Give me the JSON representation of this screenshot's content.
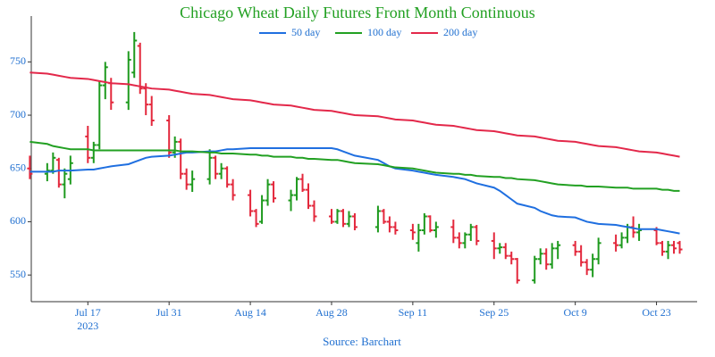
{
  "chart_data": {
    "type": "ohlc",
    "title": "Chicago Wheat Daily Futures Front Month Continuous",
    "annotation": "Source: Barchart",
    "x": [
      "2023-07-07",
      "2023-07-10",
      "2023-07-11",
      "2023-07-12",
      "2023-07-13",
      "2023-07-14",
      "2023-07-17",
      "2023-07-18",
      "2023-07-19",
      "2023-07-20",
      "2023-07-21",
      "2023-07-24",
      "2023-07-25",
      "2023-07-26",
      "2023-07-27",
      "2023-07-28",
      "2023-07-31",
      "2023-08-01",
      "2023-08-02",
      "2023-08-03",
      "2023-08-04",
      "2023-08-07",
      "2023-08-08",
      "2023-08-09",
      "2023-08-10",
      "2023-08-11",
      "2023-08-14",
      "2023-08-15",
      "2023-08-16",
      "2023-08-17",
      "2023-08-18",
      "2023-08-21",
      "2023-08-22",
      "2023-08-23",
      "2023-08-24",
      "2023-08-25",
      "2023-08-28",
      "2023-08-29",
      "2023-08-30",
      "2023-08-31",
      "2023-09-01",
      "2023-09-05",
      "2023-09-06",
      "2023-09-07",
      "2023-09-08",
      "2023-09-11",
      "2023-09-12",
      "2023-09-13",
      "2023-09-14",
      "2023-09-15",
      "2023-09-18",
      "2023-09-19",
      "2023-09-20",
      "2023-09-21",
      "2023-09-22",
      "2023-09-25",
      "2023-09-26",
      "2023-09-27",
      "2023-09-28",
      "2023-09-29",
      "2023-10-02",
      "2023-10-03",
      "2023-10-04",
      "2023-10-05",
      "2023-10-06",
      "2023-10-09",
      "2023-10-10",
      "2023-10-11",
      "2023-10-12",
      "2023-10-13",
      "2023-10-16",
      "2023-10-17",
      "2023-10-18",
      "2023-10-19",
      "2023-10-20",
      "2023-10-23",
      "2023-10-24",
      "2023-10-25",
      "2023-10-26",
      "2023-10-27"
    ],
    "open": [
      650,
      645,
      648,
      658,
      635,
      640,
      680,
      660,
      672,
      728,
      730,
      712,
      740,
      765,
      725,
      710,
      695,
      665,
      675,
      645,
      635,
      640,
      660,
      645,
      650,
      635,
      625,
      610,
      600,
      620,
      635,
      620,
      625,
      640,
      630,
      615,
      605,
      600,
      610,
      598,
      605,
      595,
      610,
      600,
      595,
      592,
      580,
      592,
      605,
      592,
      595,
      585,
      580,
      588,
      595,
      582,
      575,
      576,
      568,
      565,
      545,
      565,
      570,
      560,
      575,
      578,
      572,
      562,
      555,
      565,
      580,
      578,
      585,
      595,
      590,
      592,
      580,
      572,
      578,
      580
    ],
    "high": [
      662,
      655,
      665,
      660,
      650,
      662,
      690,
      675,
      732,
      750,
      735,
      760,
      778,
      768,
      730,
      718,
      700,
      680,
      678,
      650,
      648,
      668,
      662,
      655,
      652,
      640,
      630,
      612,
      625,
      640,
      638,
      630,
      642,
      645,
      636,
      620,
      612,
      612,
      612,
      610,
      608,
      615,
      612,
      605,
      600,
      598,
      598,
      608,
      606,
      600,
      602,
      590,
      590,
      598,
      597,
      590,
      580,
      580,
      572,
      566,
      568,
      575,
      575,
      580,
      582,
      582,
      578,
      565,
      570,
      585,
      588,
      590,
      598,
      605,
      598,
      595,
      582,
      582,
      582,
      582
    ],
    "low": [
      640,
      638,
      645,
      632,
      622,
      635,
      655,
      655,
      668,
      715,
      705,
      705,
      735,
      720,
      700,
      690,
      660,
      660,
      640,
      630,
      628,
      635,
      640,
      640,
      632,
      620,
      605,
      595,
      598,
      615,
      618,
      610,
      620,
      628,
      612,
      600,
      598,
      598,
      595,
      595,
      592,
      590,
      598,
      590,
      588,
      583,
      572,
      588,
      590,
      585,
      580,
      575,
      575,
      582,
      578,
      565,
      570,
      565,
      560,
      542,
      542,
      560,
      555,
      556,
      565,
      568,
      558,
      550,
      548,
      560,
      572,
      575,
      580,
      585,
      582,
      578,
      568,
      565,
      570,
      570
    ],
    "close": [
      645,
      648,
      660,
      635,
      645,
      655,
      660,
      672,
      728,
      745,
      712,
      752,
      770,
      725,
      710,
      695,
      665,
      675,
      645,
      635,
      640,
      660,
      645,
      650,
      635,
      625,
      610,
      598,
      620,
      635,
      622,
      625,
      640,
      630,
      615,
      605,
      600,
      610,
      598,
      605,
      595,
      610,
      600,
      595,
      592,
      590,
      592,
      605,
      592,
      595,
      585,
      580,
      588,
      595,
      582,
      575,
      576,
      568,
      565,
      545,
      565,
      570,
      560,
      575,
      578,
      572,
      562,
      555,
      565,
      580,
      578,
      585,
      595,
      590,
      592,
      580,
      572,
      578,
      575,
      574
    ],
    "increasing_color": "#1e9a1e",
    "decreasing_color": "#e3283c",
    "series": [
      {
        "name": "50 day",
        "color": "#1f6fe0",
        "values": [
          647,
          647,
          647,
          648,
          648,
          648,
          649,
          649,
          650,
          651,
          652,
          654,
          656,
          658,
          660,
          661,
          662,
          663,
          664,
          665,
          665,
          666,
          666,
          667,
          668,
          668,
          669,
          669,
          669,
          669,
          669,
          669,
          669,
          669,
          669,
          669,
          669,
          668,
          666,
          664,
          662,
          658,
          655,
          652,
          650,
          648,
          647,
          646,
          645,
          644,
          642,
          641,
          640,
          638,
          636,
          632,
          629,
          625,
          621,
          617,
          613,
          610,
          608,
          606,
          605,
          604,
          602,
          600,
          599,
          598,
          597,
          596,
          595,
          594,
          593,
          593,
          592,
          591,
          590,
          589
        ]
      },
      {
        "name": "100 day",
        "color": "#22a022",
        "values": [
          675,
          673,
          671,
          670,
          669,
          668,
          668,
          667,
          667,
          667,
          667,
          667,
          667,
          667,
          667,
          667,
          667,
          667,
          666,
          666,
          666,
          665,
          665,
          664,
          664,
          664,
          663,
          663,
          662,
          662,
          661,
          661,
          660,
          660,
          659,
          659,
          658,
          658,
          657,
          656,
          655,
          654,
          653,
          652,
          651,
          650,
          649,
          648,
          647,
          646,
          645,
          645,
          644,
          644,
          643,
          642,
          642,
          641,
          641,
          640,
          639,
          638,
          637,
          636,
          635,
          634,
          634,
          633,
          633,
          633,
          632,
          632,
          632,
          631,
          631,
          631,
          630,
          630,
          629,
          629
        ]
      },
      {
        "name": "200 day",
        "color": "#e3284a",
        "values": [
          740,
          739,
          738,
          737,
          736,
          735,
          734,
          733,
          732,
          731,
          730,
          729,
          728,
          727,
          726,
          725,
          724,
          723,
          722,
          721,
          720,
          719,
          718,
          717,
          716,
          715,
          714,
          713,
          712,
          711,
          710,
          709,
          708,
          707,
          706,
          705,
          704,
          703,
          702,
          701,
          700,
          699,
          698,
          697,
          696,
          695,
          694,
          693,
          692,
          691,
          690,
          689,
          688,
          687,
          686,
          685,
          684,
          683,
          682,
          681,
          680,
          679,
          678,
          677,
          676,
          675,
          674,
          673,
          672,
          671,
          670,
          669,
          668,
          667,
          666,
          665,
          664,
          663,
          662,
          661
        ]
      }
    ],
    "legend": "top",
    "xlim": [
      "2023-07-07T06:00:00Z",
      "2023-10-30T00:00:00Z"
    ],
    "xticks": [
      {
        "value": "2023-07-17",
        "label": "Jul 17\n2023"
      },
      {
        "value": "2023-07-31",
        "label": "Jul 31"
      },
      {
        "value": "2023-08-14",
        "label": "Aug 14"
      },
      {
        "value": "2023-08-28",
        "label": "Aug 28"
      },
      {
        "value": "2023-09-11",
        "label": "Sep 11"
      },
      {
        "value": "2023-09-25",
        "label": "Sep 25"
      },
      {
        "value": "2023-10-09",
        "label": "Oct 9"
      },
      {
        "value": "2023-10-23",
        "label": "Oct 23"
      }
    ],
    "ylim": [
      525,
      793
    ],
    "yticks": [
      550,
      600,
      650,
      700,
      750
    ]
  }
}
